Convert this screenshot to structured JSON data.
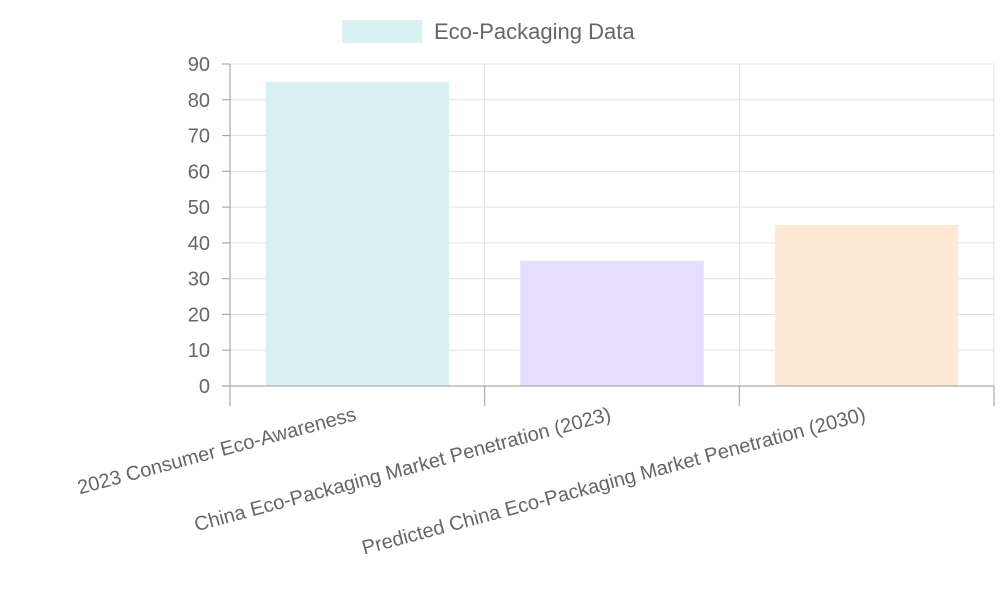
{
  "chart_data": {
    "type": "bar",
    "title": "",
    "xlabel": "",
    "ylabel": "",
    "ylim": [
      0,
      90
    ],
    "y_ticks": [
      0,
      10,
      20,
      30,
      40,
      50,
      60,
      70,
      80,
      90
    ],
    "grid": true,
    "legend_position": "top-center",
    "categories": [
      "2023 Consumer Eco-Awareness",
      "China Eco-Packaging Market Penetration (2023)",
      "Predicted China Eco-Packaging Market Penetration (2030)"
    ],
    "series": [
      {
        "name": "Eco-Packaging Data",
        "values": [
          85,
          35,
          45
        ],
        "colors": [
          "#d9f1f2",
          "#e6defe",
          "#ffe8d4"
        ],
        "legend_color": "#d9f1f2"
      }
    ]
  }
}
